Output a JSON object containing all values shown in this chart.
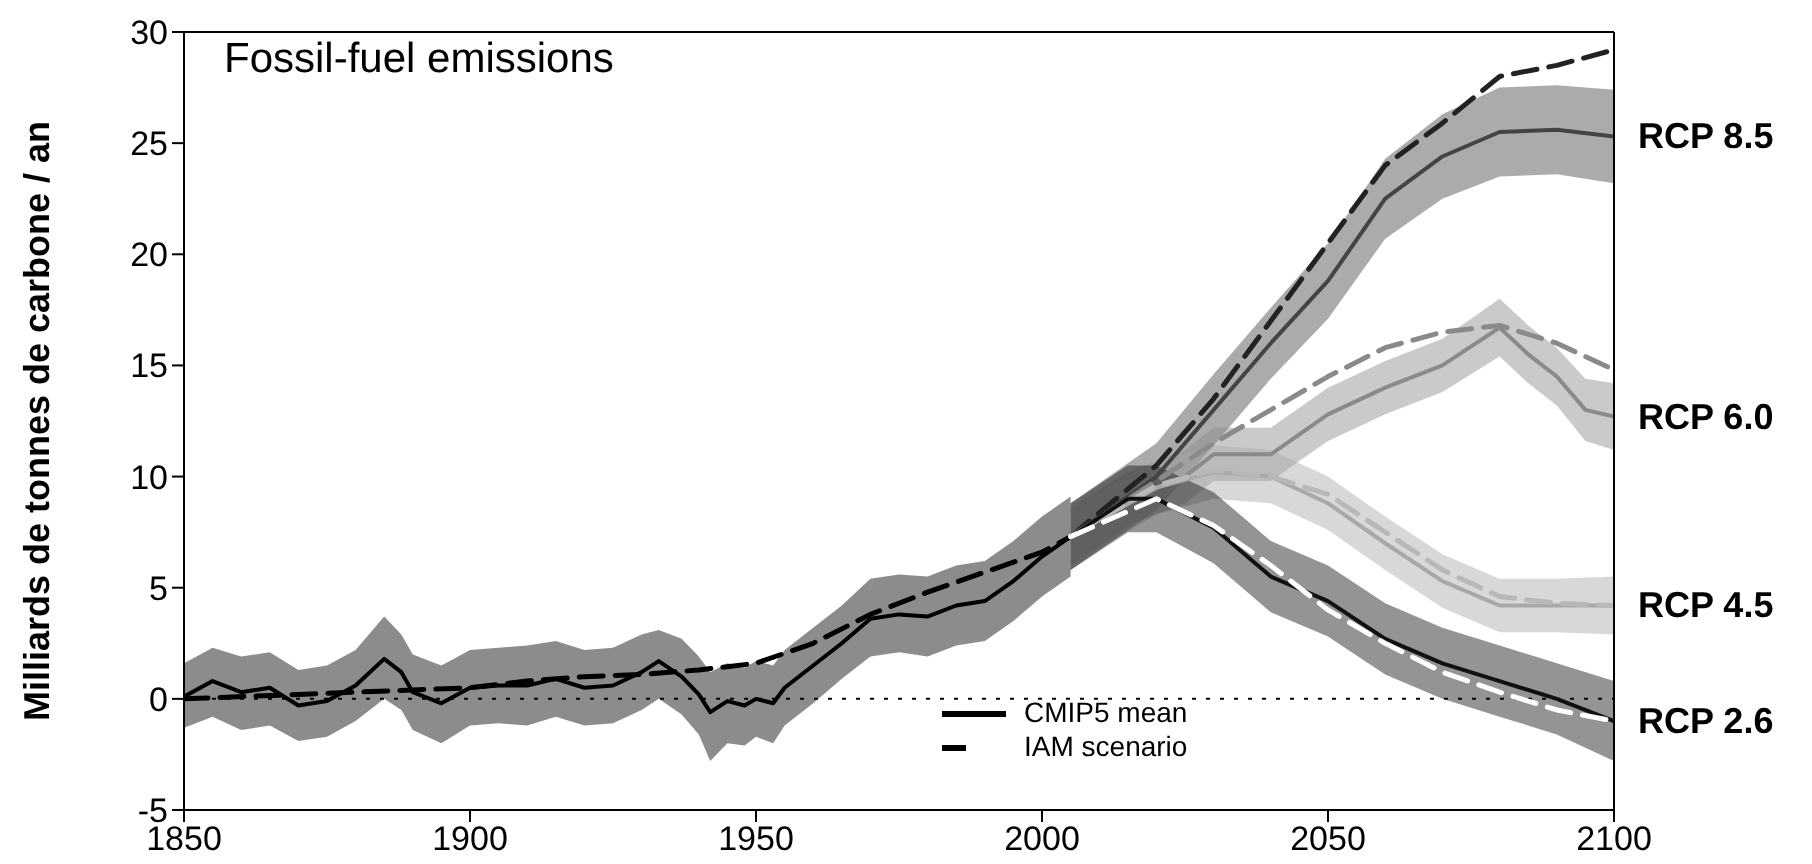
{
  "chart_data": {
    "type": "line",
    "title": "Fossil-fuel emissions",
    "ylabel": "Milliards de tonnes de carbone / an",
    "xlim": [
      1850,
      2100
    ],
    "xticks": [
      1850,
      1900,
      1950,
      2000,
      2050,
      2100
    ],
    "ylim": [
      -5,
      30
    ],
    "yticks": [
      -5,
      0,
      5,
      10,
      15,
      20,
      25,
      30
    ],
    "legend": "bottom",
    "ref_lines": [
      {
        "axis": "y",
        "value": 0,
        "line_style": "dotted",
        "color": "#000000"
      }
    ],
    "series": [
      {
        "name": "CMIP5 mean",
        "color": "#000000",
        "line_style": "solid",
        "x": [
          1850,
          1855,
          1860,
          1865,
          1870,
          1875,
          1880,
          1885,
          1888,
          1890,
          1895,
          1900,
          1905,
          1910,
          1915,
          1920,
          1925,
          1930,
          1933,
          1937,
          1940,
          1942,
          1945,
          1948,
          1950,
          1953,
          1955,
          1960,
          1965,
          1970,
          1975,
          1980,
          1985,
          1990,
          1995,
          2000,
          2005
        ],
        "values": [
          0.1,
          0.8,
          0.3,
          0.5,
          -0.3,
          -0.1,
          0.6,
          1.8,
          1.2,
          0.3,
          -0.2,
          0.5,
          0.6,
          0.6,
          0.9,
          0.5,
          0.6,
          1.2,
          1.7,
          1.0,
          0.2,
          -0.6,
          -0.1,
          -0.3,
          0.0,
          -0.2,
          0.5,
          1.5,
          2.5,
          3.6,
          3.8,
          3.7,
          4.2,
          4.4,
          5.3,
          6.4,
          7.3
        ],
        "lower": [
          -1.3,
          -0.8,
          -1.4,
          -1.2,
          -1.9,
          -1.7,
          -1.0,
          0.0,
          -0.5,
          -1.4,
          -2.0,
          -1.2,
          -1.1,
          -1.2,
          -0.8,
          -1.2,
          -1.1,
          -0.5,
          0.0,
          -0.7,
          -1.6,
          -2.8,
          -2.0,
          -2.1,
          -1.7,
          -2.0,
          -1.2,
          -0.2,
          0.9,
          1.9,
          2.1,
          1.9,
          2.4,
          2.6,
          3.5,
          4.6,
          5.5
        ],
        "upper": [
          1.6,
          2.3,
          1.9,
          2.1,
          1.3,
          1.5,
          2.2,
          3.7,
          2.9,
          2.0,
          1.5,
          2.2,
          2.3,
          2.4,
          2.6,
          2.2,
          2.3,
          2.9,
          3.1,
          2.7,
          1.9,
          1.2,
          1.6,
          1.4,
          1.7,
          1.5,
          2.2,
          3.2,
          4.2,
          5.4,
          5.6,
          5.5,
          6.0,
          6.2,
          7.1,
          8.2,
          9.1
        ]
      },
      {
        "name": "IAM scenario",
        "color": "#000000",
        "line_style": "dashed",
        "x": [
          1850,
          1870,
          1890,
          1900,
          1910,
          1920,
          1930,
          1940,
          1950,
          1960,
          1970,
          1980,
          1990,
          2000,
          2005
        ],
        "values": [
          0.0,
          0.2,
          0.4,
          0.5,
          0.8,
          1.0,
          1.1,
          1.3,
          1.6,
          2.5,
          3.8,
          4.8,
          5.7,
          6.6,
          7.3
        ]
      },
      {
        "name": "RCP 8.5",
        "color": "#444444",
        "line_style": "solid",
        "x": [
          2005,
          2010,
          2020,
          2030,
          2040,
          2050,
          2060,
          2070,
          2080,
          2090,
          2100
        ],
        "values": [
          7.3,
          8.2,
          10.0,
          13.0,
          16.0,
          18.8,
          22.5,
          24.4,
          25.5,
          25.6,
          25.3
        ],
        "lower": [
          5.8,
          6.7,
          8.5,
          11.4,
          14.4,
          17.1,
          20.7,
          22.5,
          23.5,
          23.6,
          23.2
        ],
        "upper": [
          8.8,
          9.7,
          11.5,
          14.6,
          17.6,
          20.5,
          24.3,
          26.3,
          27.5,
          27.6,
          27.4
        ]
      },
      {
        "color": "#222222",
        "line_style": "dashed",
        "x": [
          2005,
          2020,
          2030,
          2040,
          2050,
          2060,
          2070,
          2080,
          2090,
          2100
        ],
        "values": [
          7.3,
          10.5,
          13.5,
          17.0,
          20.5,
          24.0,
          25.9,
          28.0,
          28.5,
          29.2
        ]
      },
      {
        "name": "RCP 6.0",
        "color": "#8a8a8a",
        "line_style": "solid",
        "x": [
          2005,
          2015,
          2025,
          2030,
          2040,
          2050,
          2060,
          2070,
          2080,
          2085,
          2090,
          2095,
          2100
        ],
        "values": [
          7.3,
          9.0,
          10.0,
          11.0,
          11.0,
          12.8,
          14.0,
          15.0,
          16.7,
          15.5,
          14.5,
          13.0,
          12.7
        ],
        "lower": [
          6.0,
          7.8,
          8.8,
          9.8,
          9.8,
          11.6,
          12.8,
          13.8,
          15.4,
          14.2,
          13.2,
          11.6,
          11.2
        ],
        "upper": [
          8.6,
          10.2,
          11.2,
          12.2,
          12.2,
          14.0,
          15.2,
          16.2,
          18.0,
          16.8,
          15.8,
          14.4,
          14.2
        ]
      },
      {
        "color": "#8a8a8a",
        "line_style": "dashed",
        "x": [
          2005,
          2020,
          2030,
          2040,
          2050,
          2060,
          2070,
          2080,
          2090,
          2100
        ],
        "values": [
          7.3,
          9.8,
          11.5,
          13.0,
          14.5,
          15.8,
          16.5,
          16.8,
          16.0,
          14.8
        ]
      },
      {
        "name": "RCP 4.5",
        "color": "#a8a8a8",
        "line_style": "solid",
        "x": [
          2005,
          2020,
          2030,
          2040,
          2050,
          2060,
          2070,
          2080,
          2090,
          2100
        ],
        "values": [
          7.3,
          9.5,
          10.2,
          10.0,
          8.8,
          7.0,
          5.3,
          4.2,
          4.2,
          4.2
        ],
        "lower": [
          6.0,
          8.3,
          9.0,
          8.8,
          7.6,
          5.8,
          4.1,
          3.0,
          3.0,
          2.9
        ],
        "upper": [
          8.6,
          10.7,
          11.4,
          11.2,
          10.0,
          8.2,
          6.5,
          5.4,
          5.4,
          5.5
        ]
      },
      {
        "color": "#b8b8b8",
        "line_style": "dashed",
        "x": [
          2005,
          2020,
          2030,
          2040,
          2050,
          2060,
          2070,
          2080,
          2090,
          2100
        ],
        "values": [
          7.3,
          9.6,
          10.3,
          10.0,
          9.2,
          7.5,
          5.8,
          4.6,
          4.3,
          4.2
        ]
      },
      {
        "name": "RCP 2.6",
        "color": "#111111",
        "line_style": "solid",
        "x": [
          2005,
          2015,
          2020,
          2030,
          2040,
          2050,
          2060,
          2070,
          2080,
          2090,
          2100
        ],
        "values": [
          7.3,
          9.0,
          9.0,
          7.7,
          5.5,
          4.4,
          2.7,
          1.6,
          0.8,
          0.0,
          -1.0
        ],
        "lower": [
          5.8,
          7.5,
          7.5,
          6.1,
          3.9,
          2.8,
          1.1,
          0.0,
          -0.8,
          -1.6,
          -2.8
        ],
        "upper": [
          8.8,
          10.5,
          10.5,
          9.3,
          7.1,
          6.0,
          4.3,
          3.2,
          2.4,
          1.6,
          0.8
        ]
      },
      {
        "color": "#ffffff",
        "line_style": "dashed",
        "x": [
          2005,
          2020,
          2030,
          2040,
          2050,
          2060,
          2070,
          2080,
          2090,
          2100
        ],
        "values": [
          7.3,
          9.0,
          7.8,
          6.0,
          4.0,
          2.5,
          1.2,
          0.3,
          -0.5,
          -1.0
        ]
      }
    ]
  }
}
